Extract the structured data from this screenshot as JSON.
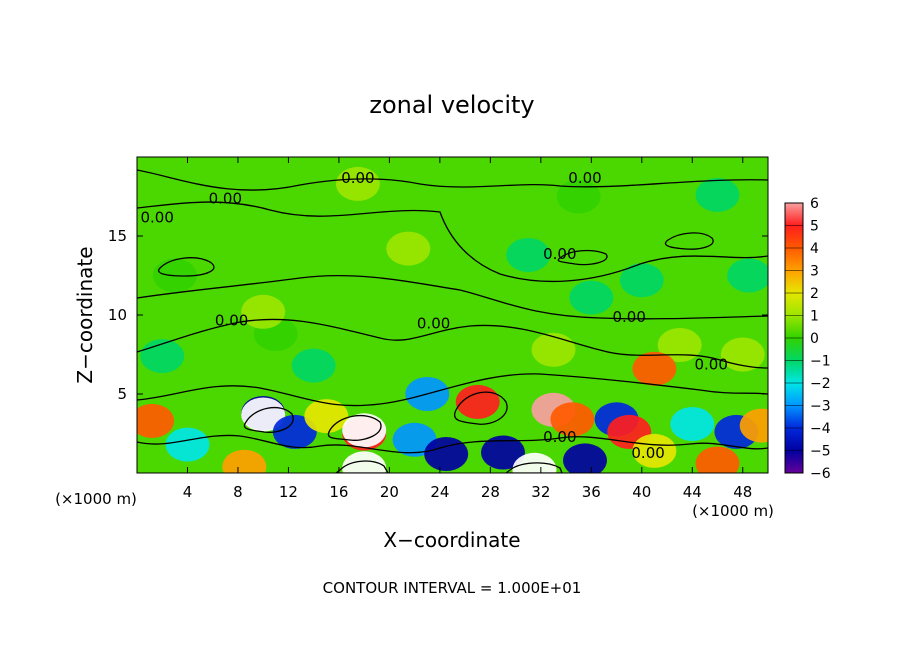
{
  "chart_data": {
    "type": "heatmap",
    "title": "zonal velocity",
    "xlabel": "X−coordinate",
    "ylabel": "Z−coordinate",
    "x_unit_left": "(×1000 m)",
    "x_unit_right": "(×1000 m)",
    "footer": "CONTOUR INTERVAL = 1.000E+01",
    "xlim": [
      0,
      50
    ],
    "ylim": [
      0,
      20
    ],
    "x_ticks": [
      4,
      8,
      12,
      16,
      20,
      24,
      28,
      32,
      36,
      40,
      44,
      48
    ],
    "y_ticks": [
      5,
      10,
      15
    ],
    "colorbar": {
      "range": [
        -6,
        6
      ],
      "ticks": [
        6,
        5,
        4,
        3,
        2,
        1,
        0,
        -1,
        -2,
        -3,
        -4,
        -5,
        -6
      ],
      "tick_labels": [
        "6",
        "5",
        "4",
        "3",
        "2",
        "1",
        "0",
        "−1",
        "−2",
        "−3",
        "−4",
        "−5",
        "−6"
      ],
      "colors": [
        "#f8a0a0",
        "#ff1e1e",
        "#ff5a00",
        "#ffa000",
        "#e6e600",
        "#9be600",
        "#32d200",
        "#00d764",
        "#00e6e6",
        "#0096ff",
        "#0028dc",
        "#0000a0",
        "#64009a"
      ]
    },
    "contour_level_label": "0.00",
    "blobs": [
      {
        "x": 17.5,
        "z": 18.3,
        "u": 0.6
      },
      {
        "x": 21.5,
        "z": 14.2,
        "u": 1.4
      },
      {
        "x": 35,
        "z": 17.5,
        "u": 0.4
      },
      {
        "x": 46,
        "z": 17.6,
        "u": -1.3
      },
      {
        "x": 31,
        "z": 13.8,
        "u": -1.0
      },
      {
        "x": 40,
        "z": 12.2,
        "u": -1.1
      },
      {
        "x": 48.5,
        "z": 12.5,
        "u": -0.9
      },
      {
        "x": 3,
        "z": 12.5,
        "u": 0.3
      },
      {
        "x": 11,
        "z": 8.8,
        "u": 0.4
      },
      {
        "x": 2,
        "z": 7.4,
        "u": -1.3
      },
      {
        "x": 10,
        "z": 10.2,
        "u": 0.8
      },
      {
        "x": 36,
        "z": 11.1,
        "u": -1.0
      },
      {
        "x": 43,
        "z": 8.1,
        "u": 1.1
      },
      {
        "x": 48,
        "z": 7.5,
        "u": 0.9
      },
      {
        "x": 41,
        "z": 6.6,
        "u": 4.5
      },
      {
        "x": 10,
        "z": 3.8,
        "u": -5.0
      },
      {
        "x": 10,
        "z": 3.7,
        "u": 6.5
      },
      {
        "x": 1.2,
        "z": 3.3,
        "u": 4.2
      },
      {
        "x": 4,
        "z": 1.8,
        "u": -1.5
      },
      {
        "x": 8.5,
        "z": 0.4,
        "u": 3.5
      },
      {
        "x": 12.5,
        "z": 2.6,
        "u": -3.5
      },
      {
        "x": 15,
        "z": 3.6,
        "u": 1.6
      },
      {
        "x": 18,
        "z": 2.5,
        "u": 5.0
      },
      {
        "x": 18,
        "z": 2.7,
        "u": 6.5
      },
      {
        "x": 18,
        "z": 0.3,
        "u": 7.0
      },
      {
        "x": 22,
        "z": 2.1,
        "u": -3.0
      },
      {
        "x": 23,
        "z": 5.0,
        "u": -3.0
      },
      {
        "x": 27,
        "z": 4.5,
        "u": 5.0
      },
      {
        "x": 24.5,
        "z": 1.2,
        "u": -5.0
      },
      {
        "x": 29,
        "z": 1.3,
        "u": -5.0
      },
      {
        "x": 31.5,
        "z": 0.2,
        "u": 6.5
      },
      {
        "x": 33,
        "z": 4.0,
        "u": 6.0
      },
      {
        "x": 34.5,
        "z": 3.4,
        "u": 4.0
      },
      {
        "x": 35.5,
        "z": 0.8,
        "u": -5.0
      },
      {
        "x": 38,
        "z": 3.4,
        "u": -4.0
      },
      {
        "x": 39,
        "z": 2.6,
        "u": 5.0
      },
      {
        "x": 41,
        "z": 1.4,
        "u": 2.2
      },
      {
        "x": 44,
        "z": 3.1,
        "u": -2.4
      },
      {
        "x": 46,
        "z": 0.6,
        "u": 4.0
      },
      {
        "x": 47.5,
        "z": 2.6,
        "u": -4.0
      },
      {
        "x": 49.5,
        "z": 3.0,
        "u": 3.0
      },
      {
        "x": 14,
        "z": 6.8,
        "u": -1.0
      },
      {
        "x": 33,
        "z": 7.8,
        "u": 1.0
      }
    ],
    "contour_labels": [
      {
        "x": 17.5,
        "z": 18.6,
        "text": "0.00"
      },
      {
        "x": 35.5,
        "z": 18.6,
        "text": "0.00"
      },
      {
        "x": 7.0,
        "z": 17.3,
        "text": "0.00"
      },
      {
        "x": 1.6,
        "z": 16.1,
        "text": "0.00"
      },
      {
        "x": 33.5,
        "z": 13.8,
        "text": "0.00"
      },
      {
        "x": 7.5,
        "z": 9.6,
        "text": "0.00"
      },
      {
        "x": 23.5,
        "z": 9.4,
        "text": "0.00"
      },
      {
        "x": 39,
        "z": 9.8,
        "text": "0.00"
      },
      {
        "x": 45.5,
        "z": 6.8,
        "text": "0.00"
      },
      {
        "x": 33.5,
        "z": 2.2,
        "text": "0.00"
      },
      {
        "x": 40.5,
        "z": 1.2,
        "text": "0.00"
      }
    ]
  }
}
